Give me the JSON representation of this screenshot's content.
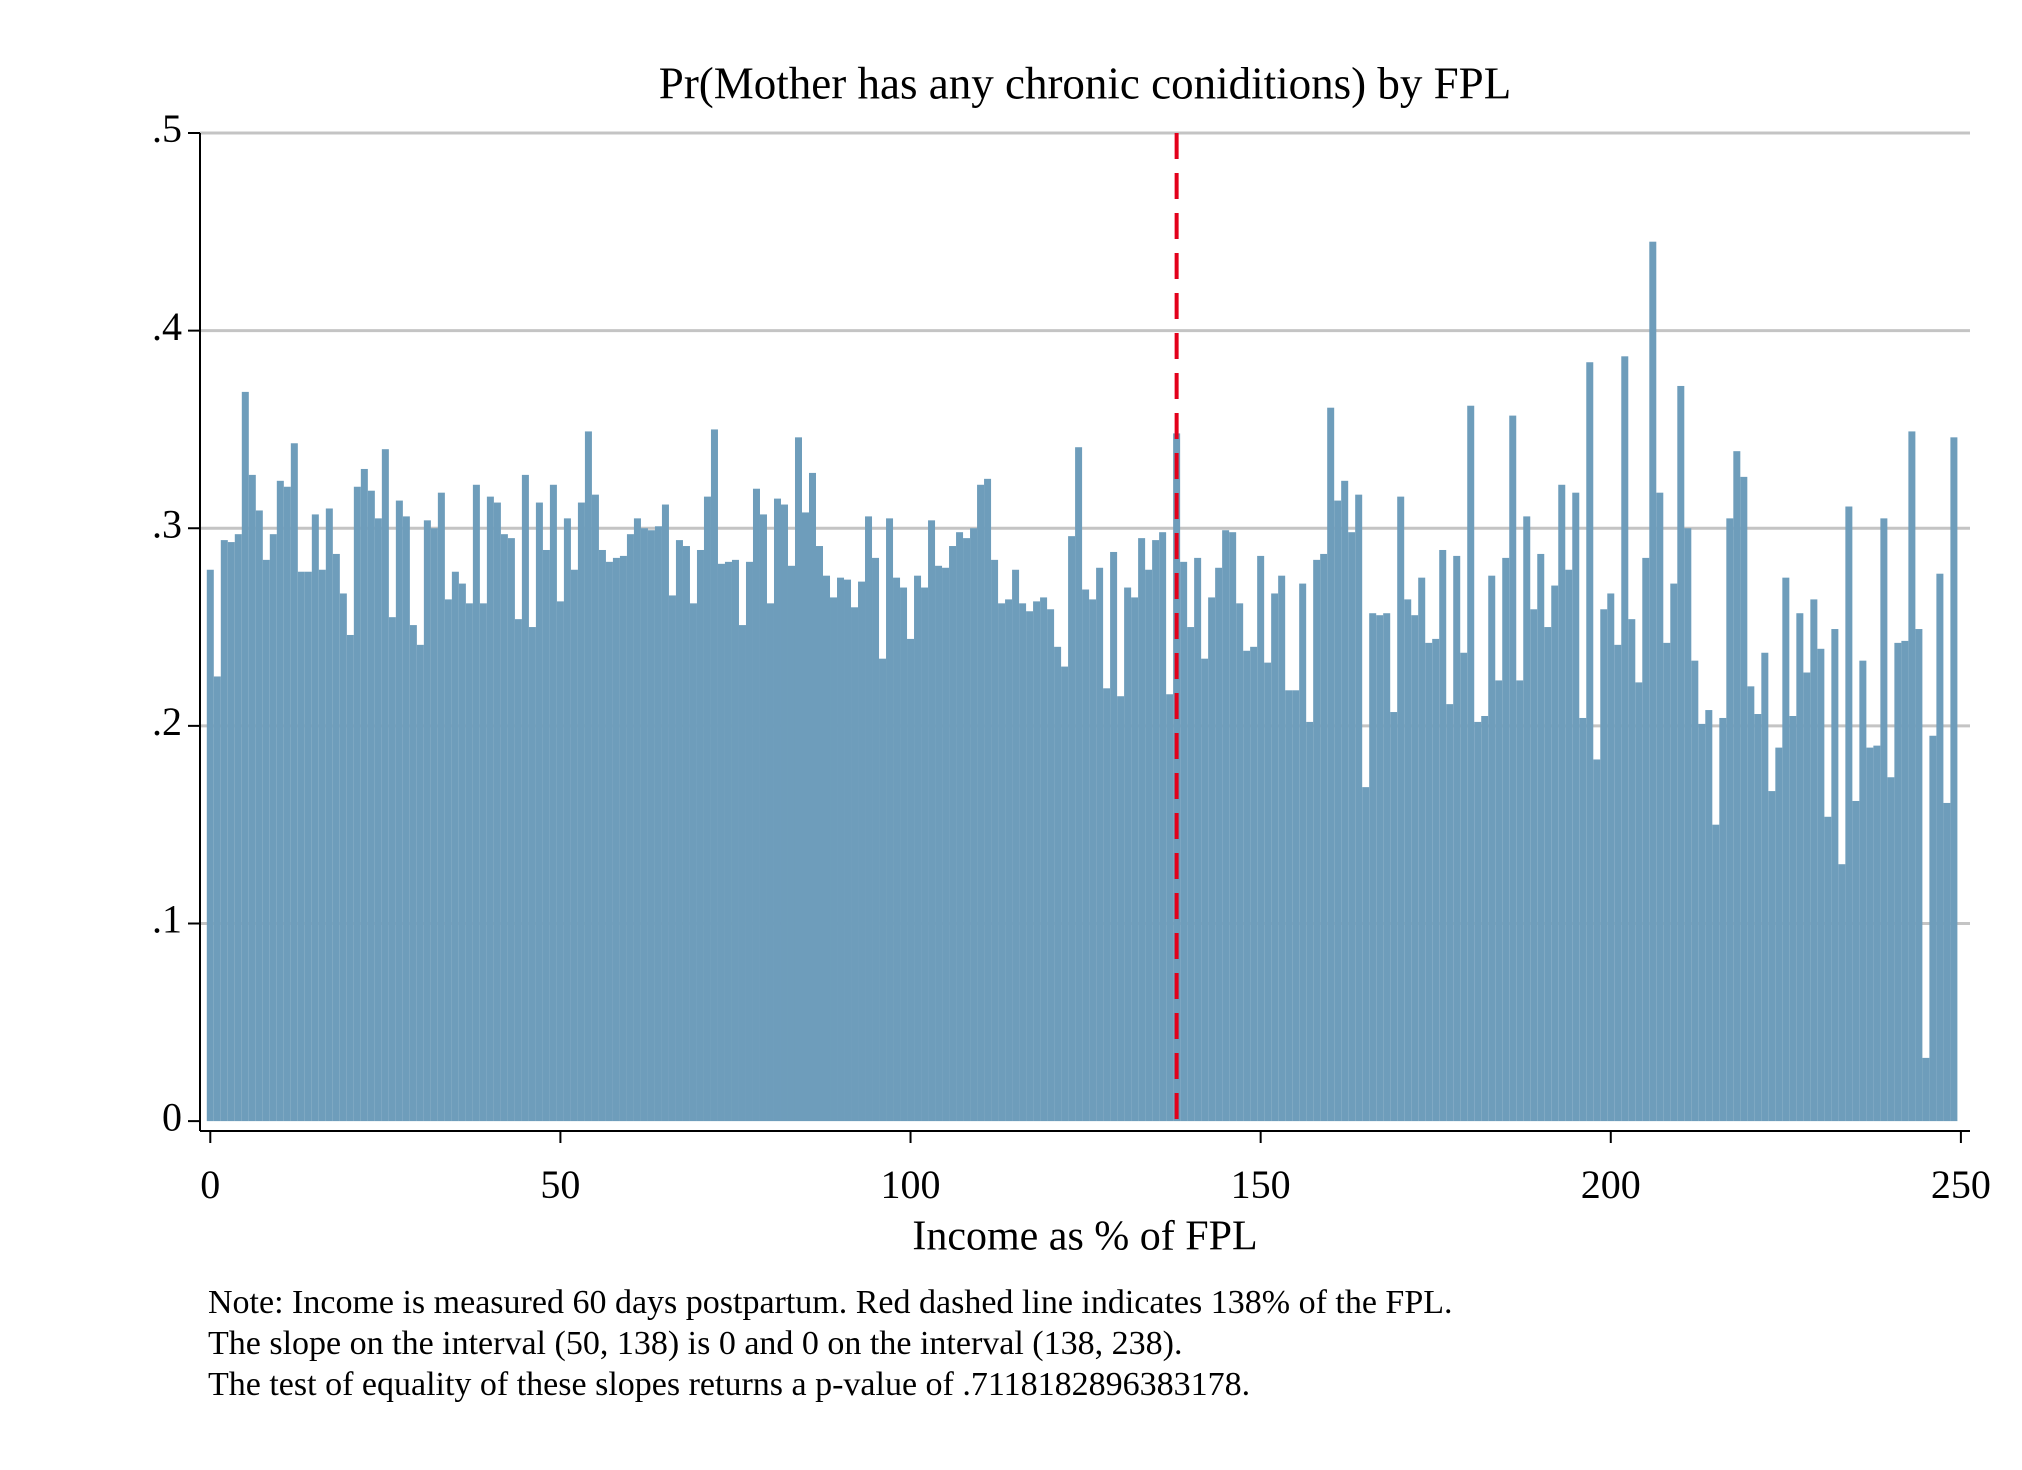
{
  "chart_data": {
    "type": "bar",
    "title": "Pr(Mother has any chronic coniditions) by FPL",
    "x_label": "Income as % of FPL",
    "notes": [
      "Note: Income is measured 60 days postpartum. Red dashed line indicates 138% of the FPL.",
      "The slope on the interval (50, 138) is 0 and 0 on the interval (138, 238).",
      "The test of equality of these slopes returns a p-value of .7118182896383178."
    ],
    "color": "#6e9dbb",
    "grid": true,
    "vline": {
      "value": 138,
      "color": "#e3001b"
    },
    "xlim": [
      -1.47,
      251.3
    ],
    "ylim": [
      -0.005,
      0.5
    ],
    "xticks": [
      0,
      50,
      100,
      150,
      200,
      250
    ],
    "yticks": [
      0,
      {
        "value": 0.1,
        "label": ".1"
      },
      {
        "value": 0.2,
        "label": ".2"
      },
      {
        "value": 0.3,
        "label": ".3"
      },
      {
        "value": 0.4,
        "label": ".4"
      },
      {
        "value": 0.5,
        "label": ".5"
      }
    ],
    "x": [
      0,
      1,
      2,
      3,
      4,
      5,
      6,
      7,
      8,
      9,
      10,
      11,
      12,
      13,
      14,
      15,
      16,
      17,
      18,
      19,
      20,
      21,
      22,
      23,
      24,
      25,
      26,
      27,
      28,
      29,
      30,
      31,
      32,
      33,
      34,
      35,
      36,
      37,
      38,
      39,
      40,
      41,
      42,
      43,
      44,
      45,
      46,
      47,
      48,
      49,
      50,
      51,
      52,
      53,
      54,
      55,
      56,
      57,
      58,
      59,
      60,
      61,
      62,
      63,
      64,
      65,
      66,
      67,
      68,
      69,
      70,
      71,
      72,
      73,
      74,
      75,
      76,
      77,
      78,
      79,
      80,
      81,
      82,
      83,
      84,
      85,
      86,
      87,
      88,
      89,
      90,
      91,
      92,
      93,
      94,
      95,
      96,
      97,
      98,
      99,
      100,
      101,
      102,
      103,
      104,
      105,
      106,
      107,
      108,
      109,
      110,
      111,
      112,
      113,
      114,
      115,
      116,
      117,
      118,
      119,
      120,
      121,
      122,
      123,
      124,
      125,
      126,
      127,
      128,
      129,
      130,
      131,
      132,
      133,
      134,
      135,
      136,
      137,
      138,
      139,
      140,
      141,
      142,
      143,
      144,
      145,
      146,
      147,
      148,
      149,
      150,
      151,
      152,
      153,
      154,
      155,
      156,
      157,
      158,
      159,
      160,
      161,
      162,
      163,
      164,
      165,
      166,
      167,
      168,
      169,
      170,
      171,
      172,
      173,
      174,
      175,
      176,
      177,
      178,
      179,
      180,
      181,
      182,
      183,
      184,
      185,
      186,
      187,
      188,
      189,
      190,
      191,
      192,
      193,
      194,
      195,
      196,
      197,
      198,
      199,
      200,
      201,
      202,
      203,
      204,
      205,
      206,
      207,
      208,
      209,
      210,
      211,
      212,
      213,
      214,
      215,
      216,
      217,
      218,
      219,
      220,
      221,
      222,
      223,
      224,
      225,
      226,
      227,
      228,
      229,
      230,
      231,
      232,
      233,
      234,
      235,
      236,
      237,
      238,
      239,
      240,
      241,
      242,
      243,
      244,
      245,
      246,
      247,
      248,
      249
    ],
    "values": [
      0.279,
      0.225,
      0.294,
      0.293,
      0.297,
      0.369,
      0.327,
      0.309,
      0.284,
      0.297,
      0.324,
      0.321,
      0.343,
      0.278,
      0.278,
      0.307,
      0.279,
      0.31,
      0.287,
      0.267,
      0.246,
      0.321,
      0.33,
      0.319,
      0.305,
      0.34,
      0.255,
      0.314,
      0.306,
      0.251,
      0.241,
      0.304,
      0.3,
      0.318,
      0.264,
      0.278,
      0.272,
      0.262,
      0.322,
      0.262,
      0.316,
      0.313,
      0.297,
      0.295,
      0.254,
      0.327,
      0.25,
      0.313,
      0.289,
      0.322,
      0.263,
      0.305,
      0.279,
      0.313,
      0.349,
      0.317,
      0.289,
      0.283,
      0.285,
      0.286,
      0.297,
      0.305,
      0.3,
      0.299,
      0.301,
      0.312,
      0.266,
      0.294,
      0.291,
      0.262,
      0.289,
      0.316,
      0.35,
      0.282,
      0.283,
      0.284,
      0.251,
      0.283,
      0.32,
      0.307,
      0.262,
      0.315,
      0.312,
      0.281,
      0.346,
      0.308,
      0.328,
      0.291,
      0.276,
      0.265,
      0.275,
      0.274,
      0.26,
      0.273,
      0.306,
      0.285,
      0.234,
      0.305,
      0.275,
      0.27,
      0.244,
      0.276,
      0.27,
      0.304,
      0.281,
      0.28,
      0.291,
      0.298,
      0.295,
      0.3,
      0.322,
      0.325,
      0.284,
      0.262,
      0.264,
      0.279,
      0.262,
      0.258,
      0.263,
      0.265,
      0.259,
      0.24,
      0.23,
      0.296,
      0.341,
      0.269,
      0.264,
      0.28,
      0.219,
      0.288,
      0.215,
      0.27,
      0.265,
      0.295,
      0.279,
      0.294,
      0.298,
      0.216,
      0.348,
      0.283,
      0.25,
      0.285,
      0.234,
      0.265,
      0.28,
      0.299,
      0.298,
      0.262,
      0.238,
      0.24,
      0.286,
      0.232,
      0.267,
      0.276,
      0.218,
      0.218,
      0.272,
      0.202,
      0.284,
      0.287,
      0.361,
      0.314,
      0.324,
      0.298,
      0.317,
      0.169,
      0.257,
      0.256,
      0.257,
      0.207,
      0.316,
      0.264,
      0.256,
      0.275,
      0.242,
      0.244,
      0.289,
      0.211,
      0.286,
      0.237,
      0.362,
      0.202,
      0.205,
      0.276,
      0.223,
      0.285,
      0.357,
      0.223,
      0.306,
      0.259,
      0.287,
      0.25,
      0.271,
      0.322,
      0.279,
      0.318,
      0.204,
      0.384,
      0.183,
      0.259,
      0.267,
      0.241,
      0.387,
      0.254,
      0.222,
      0.285,
      0.445,
      0.318,
      0.242,
      0.272,
      0.372,
      0.3,
      0.233,
      0.201,
      0.208,
      0.15,
      0.204,
      0.305,
      0.339,
      0.326,
      0.22,
      0.206,
      0.237,
      0.167,
      0.189,
      0.275,
      0.205,
      0.257,
      0.227,
      0.264,
      0.239,
      0.154,
      0.249,
      0.13,
      0.311,
      0.162,
      0.233,
      0.189,
      0.19,
      0.305,
      0.174,
      0.242,
      0.243,
      0.349,
      0.249,
      0.032,
      0.195,
      0.277,
      0.161,
      0.346
    ]
  }
}
